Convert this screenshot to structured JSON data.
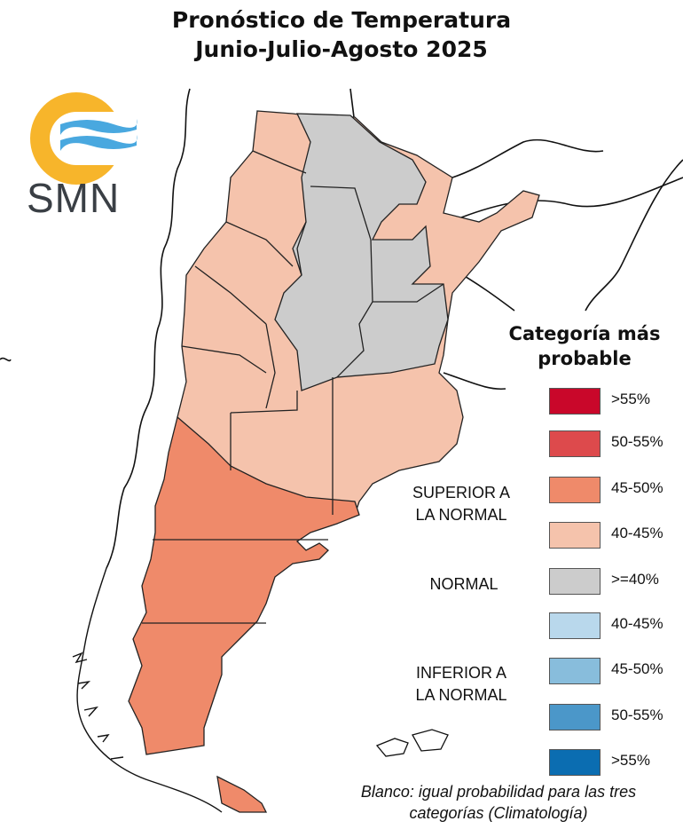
{
  "title_line1": "Pronóstico de Temperatura",
  "title_line2": "Junio-Julio-Agosto 2025",
  "logo": {
    "text": "SMN",
    "icon": "smn-sun-waves-icon"
  },
  "legend": {
    "title_line1": "Categoría más",
    "title_line2": "probable",
    "items": [
      {
        "label": ">55%",
        "color": "#c9072a"
      },
      {
        "label": "50-55%",
        "color": "#dd4a4c"
      },
      {
        "label": "45-50%",
        "color": "#ef8a6a"
      },
      {
        "label": "40-45%",
        "color": "#f5c3ac"
      },
      {
        "label": ">=40%",
        "color": "#cccccc"
      },
      {
        "label": "40-45%",
        "color": "#b9d8ec"
      },
      {
        "label": "45-50%",
        "color": "#88bddc"
      },
      {
        "label": "50-55%",
        "color": "#4b97c9"
      },
      {
        "label": ">55%",
        "color": "#0b6db1"
      }
    ],
    "categories": {
      "superior_line1": "SUPERIOR A",
      "superior_line2": "LA NORMAL",
      "normal": "NORMAL",
      "inferior_line1": "INFERIOR A",
      "inferior_line2": "LA NORMAL"
    }
  },
  "footnote_line1": "Blanco: igual probabilidad para las tres",
  "footnote_line2": "categorías (Climatología)",
  "map_colors": {
    "superior_45_50": "#ef8a6a",
    "superior_40_45": "#f5c3ac",
    "normal": "#cccccc"
  }
}
